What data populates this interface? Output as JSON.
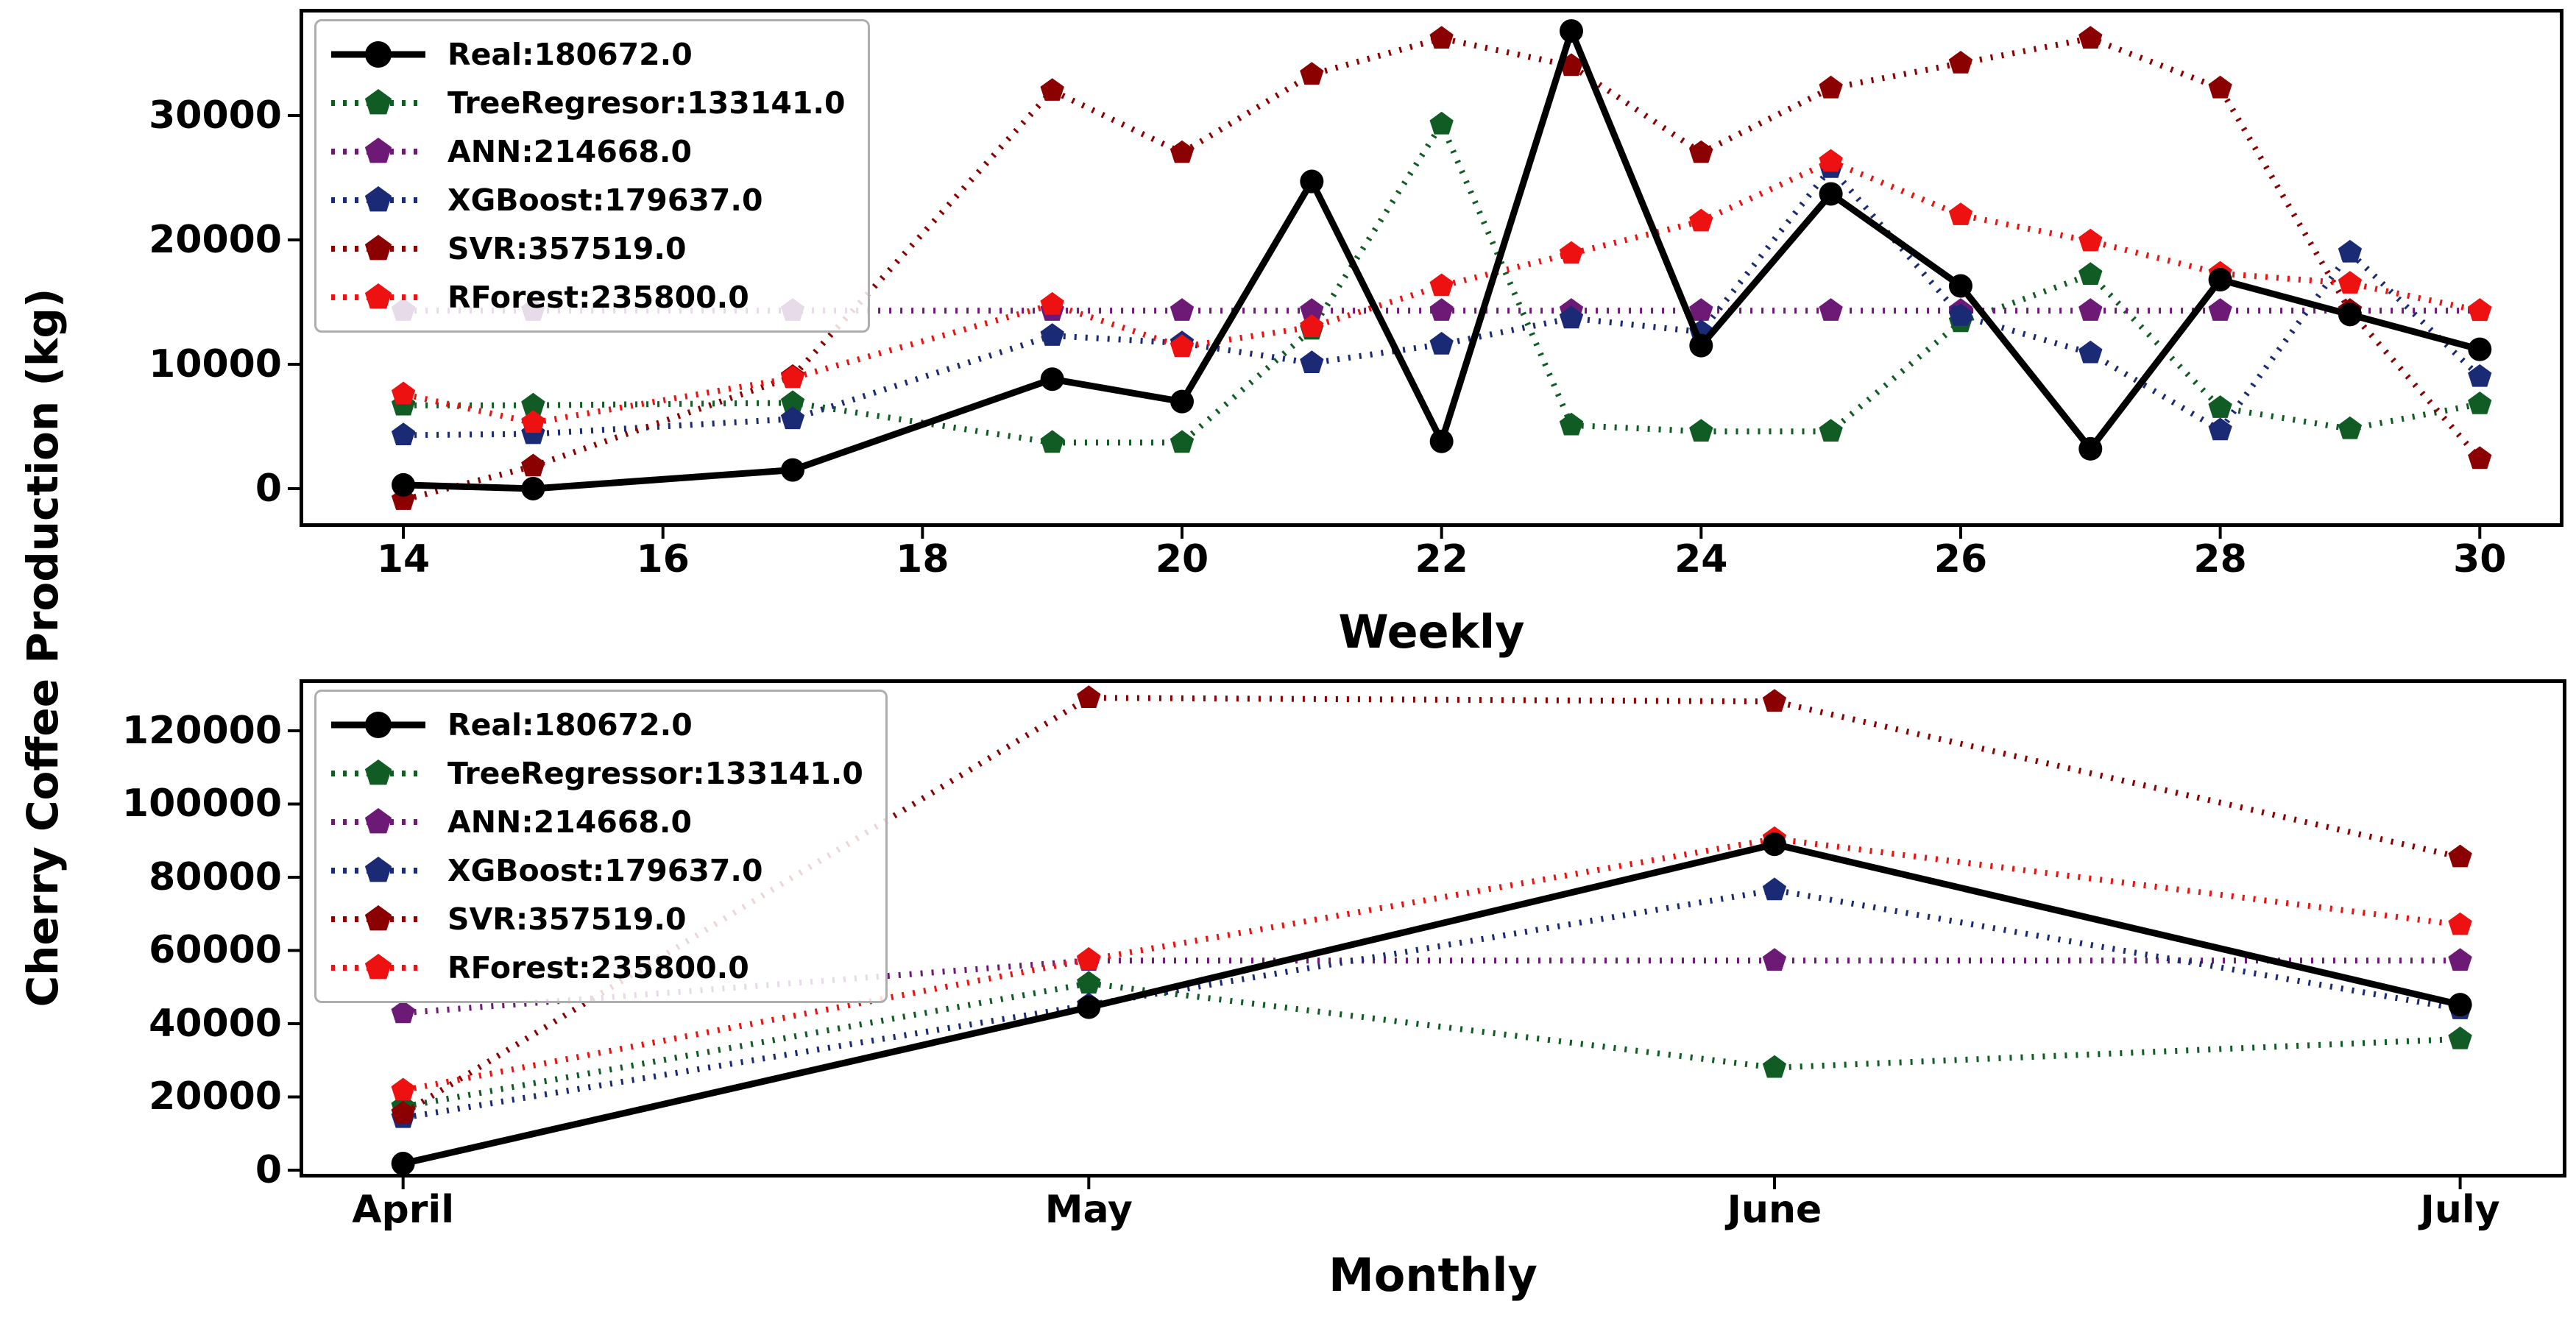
{
  "figure": {
    "ylabel": "Cherry Coffee Production (kg)",
    "background_color": "#ffffff",
    "legend_position": "upper left",
    "grid": false
  },
  "chart_data": [
    {
      "type": "line",
      "title": "Weekly",
      "xlabel": "Weekly",
      "ylabel": "Cherry Coffee Production (kg)",
      "xlim": [
        13.2,
        30.645
      ],
      "ylim": [
        -3080,
        38580
      ],
      "x": [
        14,
        15,
        17,
        19,
        20,
        21,
        22,
        23,
        24,
        25,
        26,
        27,
        28,
        29,
        30
      ],
      "xticks": [
        14,
        16,
        18,
        20,
        22,
        24,
        26,
        28,
        30
      ],
      "xticklabels": [
        "14",
        "16",
        "18",
        "20",
        "22",
        "24",
        "26",
        "28",
        "30"
      ],
      "yticks": [
        0,
        10000,
        20000,
        30000
      ],
      "yticklabels": [
        "0",
        "10000",
        "20000",
        "30000"
      ],
      "draw_order": [
        1,
        2,
        3,
        4,
        5,
        0
      ],
      "series": [
        {
          "name": "Real",
          "label": "Real:180672.0",
          "color": "#000000",
          "line": "solid",
          "marker": "circle",
          "values": [
            300,
            0,
            1500,
            8800,
            7000,
            24700,
            3800,
            36800,
            11500,
            23700,
            16300,
            3200,
            16800,
            14000,
            11200
          ]
        },
        {
          "name": "TreeRegresor",
          "label": "TreeRegresor:133141.0",
          "color": "#105c24",
          "line": "dotted",
          "marker": "pentagon",
          "values": [
            6700,
            6700,
            6900,
            3700,
            3700,
            12800,
            29300,
            5100,
            4600,
            4600,
            13400,
            17200,
            6500,
            4800,
            6800
          ]
        },
        {
          "name": "ANN",
          "label": "ANN:214668.0",
          "color": "#6d1a77",
          "line": "dotted",
          "marker": "pentagon",
          "values": [
            14311,
            14311,
            14311,
            14311,
            14311,
            14311,
            14311,
            14311,
            14311,
            14311,
            14311,
            14311,
            14311,
            14311,
            14311
          ]
        },
        {
          "name": "XGBoost",
          "label": "XGBoost:179637.0",
          "color": "#1b2a75",
          "line": "dotted",
          "marker": "pentagon",
          "values": [
            4300,
            4400,
            5600,
            12300,
            11700,
            10100,
            11600,
            13700,
            12600,
            25800,
            13900,
            10900,
            4700,
            19000,
            9000
          ]
        },
        {
          "name": "SVR",
          "label": "SVR:357519.0",
          "color": "#8b0000",
          "line": "dotted",
          "marker": "pentagon",
          "values": [
            -900,
            1800,
            9000,
            32000,
            27000,
            33300,
            36200,
            34000,
            27000,
            32200,
            34200,
            36200,
            32200,
            14300,
            2400
          ]
        },
        {
          "name": "RForest",
          "label": "RForest:235800.0",
          "color": "#ee1111",
          "line": "dotted",
          "marker": "pentagon",
          "values": [
            7600,
            5300,
            8900,
            14800,
            11400,
            13000,
            16300,
            18900,
            21500,
            26300,
            22000,
            19900,
            17300,
            16500,
            14300
          ]
        }
      ]
    },
    {
      "type": "line",
      "title": "Monthly",
      "xlabel": "Monthly",
      "ylabel": "Cherry Coffee Production (kg)",
      "xlim": [
        -0.151,
        3.155
      ],
      "ylim": [
        -2010,
        134070
      ],
      "x": [
        0,
        1,
        2,
        3
      ],
      "xticks": [
        0,
        1,
        2,
        3
      ],
      "xticklabels": [
        "April",
        "May",
        "June",
        "July"
      ],
      "yticks": [
        0,
        20000,
        40000,
        60000,
        80000,
        100000,
        120000
      ],
      "yticklabels": [
        "0",
        "20000",
        "40000",
        "60000",
        "80000",
        "100000",
        "120000"
      ],
      "draw_order": [
        1,
        2,
        3,
        4,
        5,
        0
      ],
      "series": [
        {
          "name": "Real",
          "label": "Real:180672.0",
          "color": "#000000",
          "line": "solid",
          "marker": "circle",
          "values": [
            1800,
            44500,
            89000,
            45200
          ]
        },
        {
          "name": "TreeRegressor",
          "label": "TreeRegressor:133141.0",
          "color": "#105c24",
          "line": "dotted",
          "marker": "pentagon",
          "values": [
            17300,
            51000,
            28000,
            35800
          ]
        },
        {
          "name": "ANN",
          "label": "ANN:214668.0",
          "color": "#6d1a77",
          "line": "dotted",
          "marker": "pentagon",
          "values": [
            42934,
            57245,
            57245,
            57245
          ]
        },
        {
          "name": "XGBoost",
          "label": "XGBoost:179637.0",
          "color": "#1b2a75",
          "line": "dotted",
          "marker": "pentagon",
          "values": [
            14300,
            45100,
            76500,
            44000
          ]
        },
        {
          "name": "SVR",
          "label": "SVR:357519.0",
          "color": "#8b0000",
          "line": "dotted",
          "marker": "pentagon",
          "values": [
            15500,
            129000,
            128000,
            85500
          ]
        },
        {
          "name": "RForest",
          "label": "RForest:235800.0",
          "color": "#ee1111",
          "line": "dotted",
          "marker": "pentagon",
          "values": [
            21800,
            57500,
            90500,
            67000
          ]
        }
      ]
    }
  ]
}
